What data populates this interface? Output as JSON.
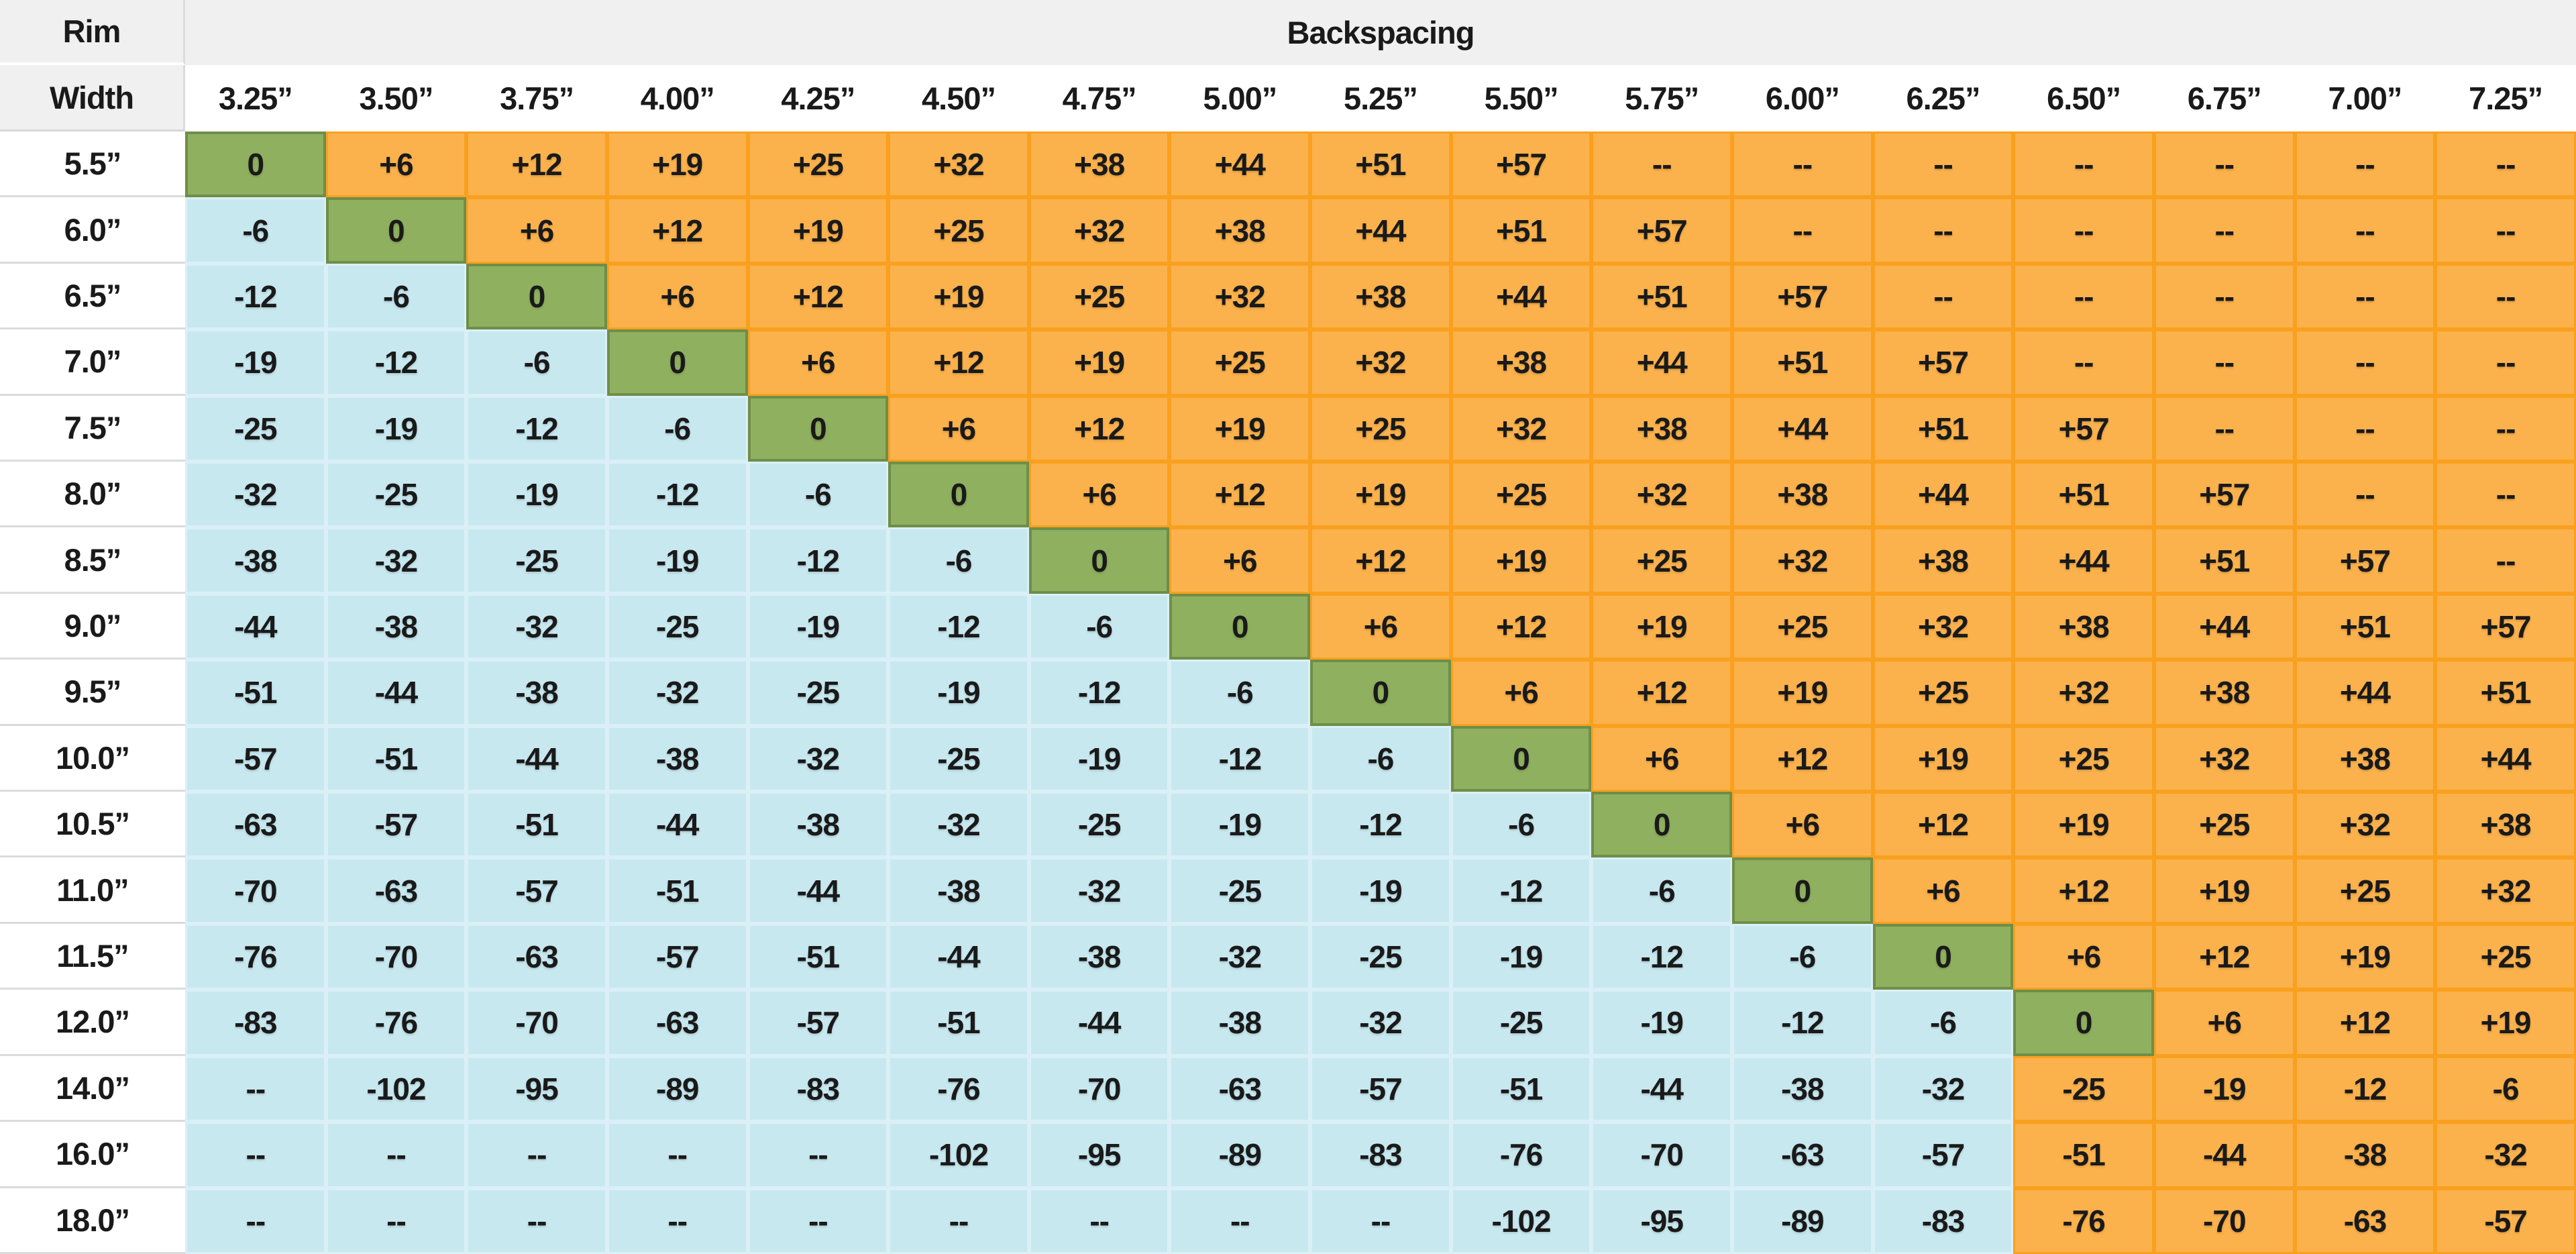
{
  "header": {
    "rim": "Rim",
    "width": "Width",
    "backspacing": "Backspacing"
  },
  "chart_data": {
    "type": "table",
    "corner_top": "Rim",
    "corner_bottom": "Width",
    "group_header": "Backspacing",
    "columns": [
      "3.25”",
      "3.50”",
      "3.75”",
      "4.00”",
      "4.25”",
      "4.50”",
      "4.75”",
      "5.00”",
      "5.25”",
      "5.50”",
      "5.75”",
      "6.00”",
      "6.25”",
      "6.50”",
      "6.75”",
      "7.00”",
      "7.25”"
    ],
    "rows": [
      {
        "label": "5.5”",
        "values": [
          "0",
          "+6",
          "+12",
          "+19",
          "+25",
          "+32",
          "+38",
          "+44",
          "+51",
          "+57",
          "--",
          "--",
          "--",
          "--",
          "--",
          "--",
          "--"
        ],
        "colors": "goooooooooooooooo"
      },
      {
        "label": "6.0”",
        "values": [
          "-6",
          "0",
          "+6",
          "+12",
          "+19",
          "+25",
          "+32",
          "+38",
          "+44",
          "+51",
          "+57",
          "--",
          "--",
          "--",
          "--",
          "--",
          "--"
        ],
        "colors": "bgooooooooooooooo"
      },
      {
        "label": "6.5”",
        "values": [
          "-12",
          "-6",
          "0",
          "+6",
          "+12",
          "+19",
          "+25",
          "+32",
          "+38",
          "+44",
          "+51",
          "+57",
          "--",
          "--",
          "--",
          "--",
          "--"
        ],
        "colors": "bbgoooooooooooooo"
      },
      {
        "label": "7.0”",
        "values": [
          "-19",
          "-12",
          "-6",
          "0",
          "+6",
          "+12",
          "+19",
          "+25",
          "+32",
          "+38",
          "+44",
          "+51",
          "+57",
          "--",
          "--",
          "--",
          "--"
        ],
        "colors": "bbbgooooooooooooo"
      },
      {
        "label": "7.5”",
        "values": [
          "-25",
          "-19",
          "-12",
          "-6",
          "0",
          "+6",
          "+12",
          "+19",
          "+25",
          "+32",
          "+38",
          "+44",
          "+51",
          "+57",
          "--",
          "--",
          "--"
        ],
        "colors": "bbbbgoooooooooooo"
      },
      {
        "label": "8.0”",
        "values": [
          "-32",
          "-25",
          "-19",
          "-12",
          "-6",
          "0",
          "+6",
          "+12",
          "+19",
          "+25",
          "+32",
          "+38",
          "+44",
          "+51",
          "+57",
          "--",
          "--"
        ],
        "colors": "bbbbbgooooooooooo"
      },
      {
        "label": "8.5”",
        "values": [
          "-38",
          "-32",
          "-25",
          "-19",
          "-12",
          "-6",
          "0",
          "+6",
          "+12",
          "+19",
          "+25",
          "+32",
          "+38",
          "+44",
          "+51",
          "+57",
          "--"
        ],
        "colors": "bbbbbbgoooooooooo"
      },
      {
        "label": "9.0”",
        "values": [
          "-44",
          "-38",
          "-32",
          "-25",
          "-19",
          "-12",
          "-6",
          "0",
          "+6",
          "+12",
          "+19",
          "+25",
          "+32",
          "+38",
          "+44",
          "+51",
          "+57"
        ],
        "colors": "bbbbbbbgooooooooo"
      },
      {
        "label": "9.5”",
        "values": [
          "-51",
          "-44",
          "-38",
          "-32",
          "-25",
          "-19",
          "-12",
          "-6",
          "0",
          "+6",
          "+12",
          "+19",
          "+25",
          "+32",
          "+38",
          "+44",
          "+51"
        ],
        "colors": "bbbbbbbbgoooooooo"
      },
      {
        "label": "10.0”",
        "values": [
          "-57",
          "-51",
          "-44",
          "-38",
          "-32",
          "-25",
          "-19",
          "-12",
          "-6",
          "0",
          "+6",
          "+12",
          "+19",
          "+25",
          "+32",
          "+38",
          "+44"
        ],
        "colors": "bbbbbbbbbgooooooo"
      },
      {
        "label": "10.5”",
        "values": [
          "-63",
          "-57",
          "-51",
          "-44",
          "-38",
          "-32",
          "-25",
          "-19",
          "-12",
          "-6",
          "0",
          "+6",
          "+12",
          "+19",
          "+25",
          "+32",
          "+38"
        ],
        "colors": "bbbbbbbbbbgoooooo"
      },
      {
        "label": "11.0”",
        "values": [
          "-70",
          "-63",
          "-57",
          "-51",
          "-44",
          "-38",
          "-32",
          "-25",
          "-19",
          "-12",
          "-6",
          "0",
          "+6",
          "+12",
          "+19",
          "+25",
          "+32"
        ],
        "colors": "bbbbbbbbbbbgooooo"
      },
      {
        "label": "11.5”",
        "values": [
          "-76",
          "-70",
          "-63",
          "-57",
          "-51",
          "-44",
          "-38",
          "-32",
          "-25",
          "-19",
          "-12",
          "-6",
          "0",
          "+6",
          "+12",
          "+19",
          "+25"
        ],
        "colors": "bbbbbbbbbbbbgoooo"
      },
      {
        "label": "12.0”",
        "values": [
          "-83",
          "-76",
          "-70",
          "-63",
          "-57",
          "-51",
          "-44",
          "-38",
          "-32",
          "-25",
          "-19",
          "-12",
          "-6",
          "0",
          "+6",
          "+12",
          "+19"
        ],
        "colors": "bbbbbbbbbbbbbgooo"
      },
      {
        "label": "14.0”",
        "values": [
          "--",
          "-102",
          "-95",
          "-89",
          "-83",
          "-76",
          "-70",
          "-63",
          "-57",
          "-51",
          "-44",
          "-38",
          "-32",
          "-25",
          "-19",
          "-12",
          "-6"
        ],
        "colors": "bbbbbbbbbbbbboooo"
      },
      {
        "label": "16.0”",
        "values": [
          "--",
          "--",
          "--",
          "--",
          "--",
          "-102",
          "-95",
          "-89",
          "-83",
          "-76",
          "-70",
          "-63",
          "-57",
          "-51",
          "-44",
          "-38",
          "-32"
        ],
        "colors": "bbbbbbbbbbbbboooo"
      },
      {
        "label": "18.0”",
        "values": [
          "--",
          "--",
          "--",
          "--",
          "--",
          "--",
          "--",
          "--",
          "--",
          "-102",
          "-95",
          "-89",
          "-83",
          "-76",
          "-70",
          "-63",
          "-57"
        ],
        "colors": "bbbbbbbbbbbbboooo"
      }
    ],
    "palette": {
      "g": {
        "bg": "#8fb05f",
        "border": "#6e8e49"
      },
      "o": {
        "bg": "#fbb24c",
        "border": "#f9a01e"
      },
      "b": {
        "bg": "#c8e8f0",
        "border": "#daf0f6"
      }
    },
    "header_bg": "#f0f0f1",
    "text_color": "#1a1a1a"
  }
}
